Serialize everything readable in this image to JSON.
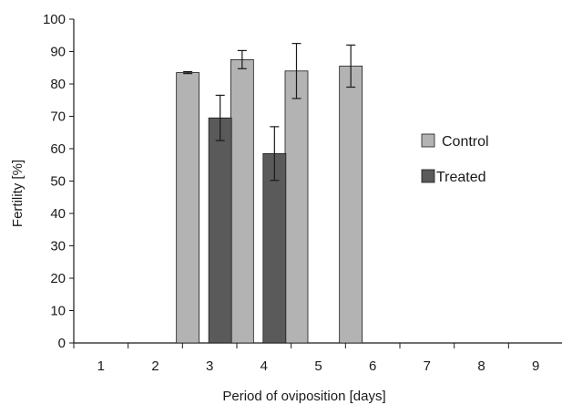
{
  "chart_data": {
    "type": "bar",
    "title": "",
    "xlabel": "Period of oviposition [days]",
    "ylabel": "Fertility [%]",
    "ylim": [
      0,
      100
    ],
    "yticks": [
      0,
      10,
      20,
      30,
      40,
      50,
      60,
      70,
      80,
      90,
      100
    ],
    "categories": [
      "1",
      "2",
      "3",
      "4",
      "5",
      "6",
      "7",
      "8",
      "9"
    ],
    "grid": false,
    "legend_position": "right",
    "series": [
      {
        "name": "Control",
        "color": "#b3b3b3",
        "values": [
          null,
          null,
          83.5,
          87.5,
          84,
          85.5,
          null,
          null,
          null
        ],
        "errors": [
          null,
          null,
          0.3,
          2.8,
          8.5,
          6.5,
          null,
          null,
          null
        ]
      },
      {
        "name": "Treated",
        "color": "#5a5a5a",
        "values": [
          null,
          null,
          69.5,
          58.5,
          null,
          null,
          null,
          null,
          null
        ],
        "errors": [
          null,
          null,
          7,
          8.3,
          null,
          null,
          null,
          null,
          null
        ]
      }
    ]
  }
}
